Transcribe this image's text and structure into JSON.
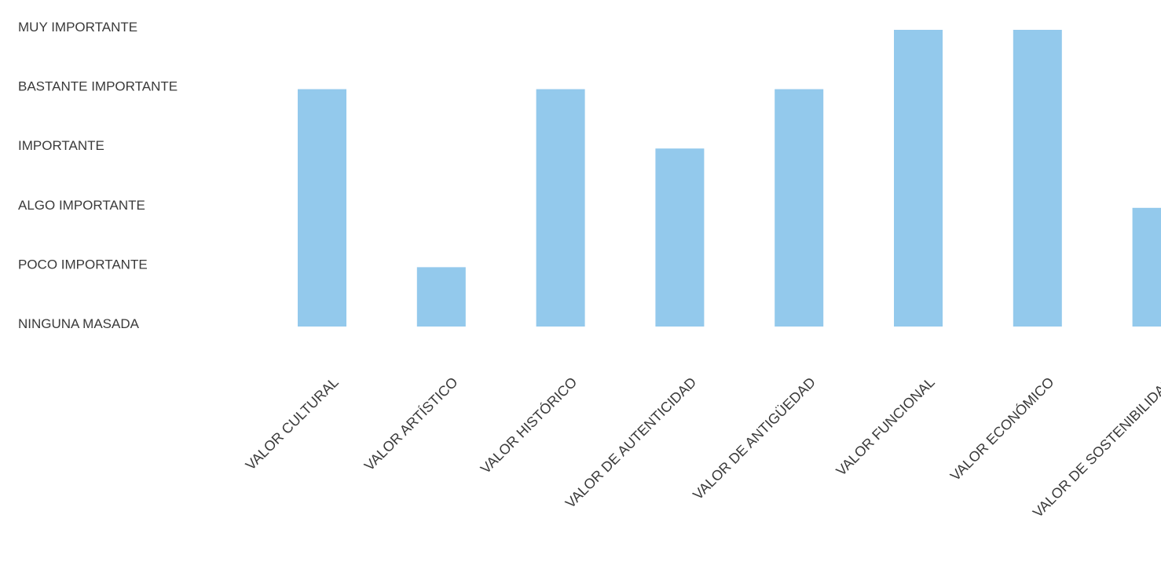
{
  "chart_data": {
    "type": "bar",
    "title": "",
    "xlabel": "",
    "ylabel": "",
    "y_tick_labels": [
      "NINGUNA MASADA",
      "POCO IMPORTANTE",
      "ALGO IMPORTANTE",
      "IMPORTANTE",
      "BASTANTE IMPORTANTE",
      "MUY IMPORTANTE"
    ],
    "ylim": [
      0,
      5
    ],
    "grid": false,
    "legend": "none",
    "bar_color": "#93C9EC",
    "categories": [
      "VALOR CULTURAL",
      "VALOR ARTÍSTICO",
      "VALOR HISTÓRICO",
      "VALOR DE AUTENTICIDAD",
      "VALOR DE ANTIGÜEDAD",
      "VALOR FUNCIONAL",
      "VALOR ECONÓMICO",
      "VALOR DE SOSTENIBILIDAD"
    ],
    "values": [
      4,
      1,
      4,
      3,
      4,
      5,
      5,
      2
    ]
  }
}
